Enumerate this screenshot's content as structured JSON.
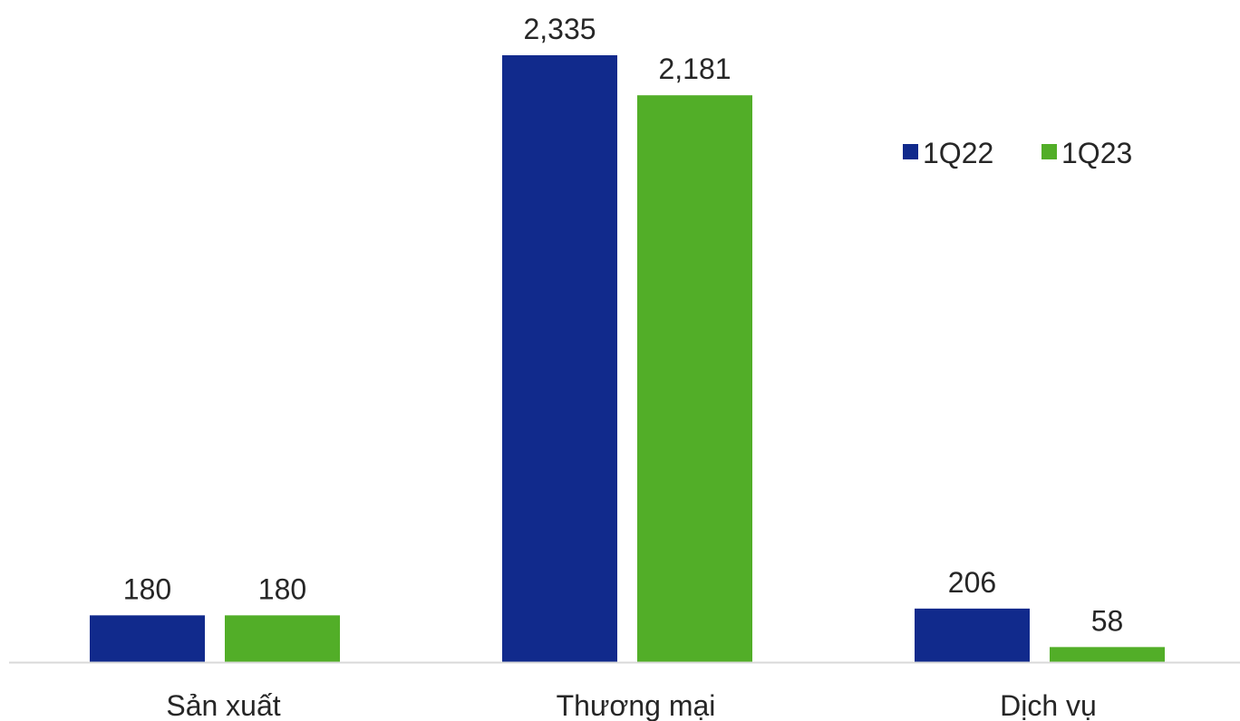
{
  "chart_data": {
    "type": "bar",
    "categories": [
      "Sản xuất",
      "Thương mại",
      "Dịch vụ"
    ],
    "series": [
      {
        "name": "1Q22",
        "color": "#112A8C",
        "values": [
          180,
          2335,
          206
        ],
        "labels": [
          "180",
          "2,335",
          "206"
        ]
      },
      {
        "name": "1Q23",
        "color": "#52AE28",
        "values": [
          180,
          2181,
          58
        ],
        "labels": [
          "180",
          "2,181",
          "58"
        ]
      }
    ],
    "ylim": [
      0,
      2335
    ],
    "grid": false,
    "legend_position": "top-right",
    "title": "",
    "xlabel": "",
    "ylabel": ""
  },
  "colors": {
    "axis_line": "#D9D9D9",
    "text": "#262626"
  }
}
